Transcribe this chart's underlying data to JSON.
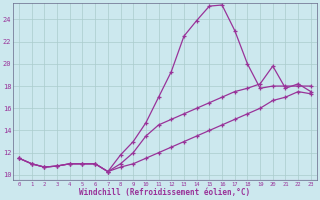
{
  "background_color": "#cce8ee",
  "grid_color": "#aacccc",
  "line_color": "#993399",
  "xlabel": "Windchill (Refroidissement éolien,°C)",
  "ylabel_ticks": [
    10,
    12,
    14,
    16,
    18,
    20,
    22,
    24
  ],
  "x_ticks": [
    0,
    1,
    2,
    3,
    4,
    5,
    6,
    7,
    8,
    9,
    10,
    11,
    12,
    13,
    14,
    15,
    16,
    17,
    18,
    19,
    20,
    21,
    22,
    23
  ],
  "xlim": [
    -0.5,
    23.5
  ],
  "ylim": [
    9.5,
    25.5
  ],
  "line1_x": [
    0,
    1,
    2,
    3,
    4,
    5,
    6,
    7,
    8,
    9,
    10,
    11,
    12,
    13,
    14,
    15,
    16,
    17,
    18,
    19,
    20,
    21,
    22,
    23
  ],
  "line1_y": [
    11.5,
    11.0,
    10.7,
    10.8,
    11.0,
    11.0,
    11.0,
    10.3,
    11.8,
    13.0,
    14.7,
    17.0,
    19.3,
    22.5,
    23.9,
    25.2,
    25.3,
    23.0,
    20.0,
    17.8,
    18.0,
    18.0,
    18.0,
    18.0
  ],
  "line2_x": [
    0,
    1,
    2,
    3,
    4,
    5,
    6,
    7,
    8,
    9,
    10,
    11,
    12,
    13,
    14,
    15,
    16,
    17,
    18,
    19,
    20,
    21,
    22,
    23
  ],
  "line2_y": [
    11.5,
    11.0,
    10.7,
    10.8,
    11.0,
    11.0,
    11.0,
    10.3,
    11.0,
    12.0,
    13.5,
    14.5,
    15.0,
    15.5,
    16.0,
    16.5,
    17.0,
    17.5,
    17.8,
    18.2,
    19.8,
    17.8,
    18.2,
    17.5
  ],
  "line3_x": [
    0,
    1,
    2,
    3,
    4,
    5,
    6,
    7,
    8,
    9,
    10,
    11,
    12,
    13,
    14,
    15,
    16,
    17,
    18,
    19,
    20,
    21,
    22,
    23
  ],
  "line3_y": [
    11.5,
    11.0,
    10.7,
    10.8,
    11.0,
    11.0,
    11.0,
    10.3,
    10.7,
    11.0,
    11.5,
    12.0,
    12.5,
    13.0,
    13.5,
    14.0,
    14.5,
    15.0,
    15.5,
    16.0,
    16.7,
    17.0,
    17.5,
    17.3
  ],
  "title_bgcolor": "#993399"
}
